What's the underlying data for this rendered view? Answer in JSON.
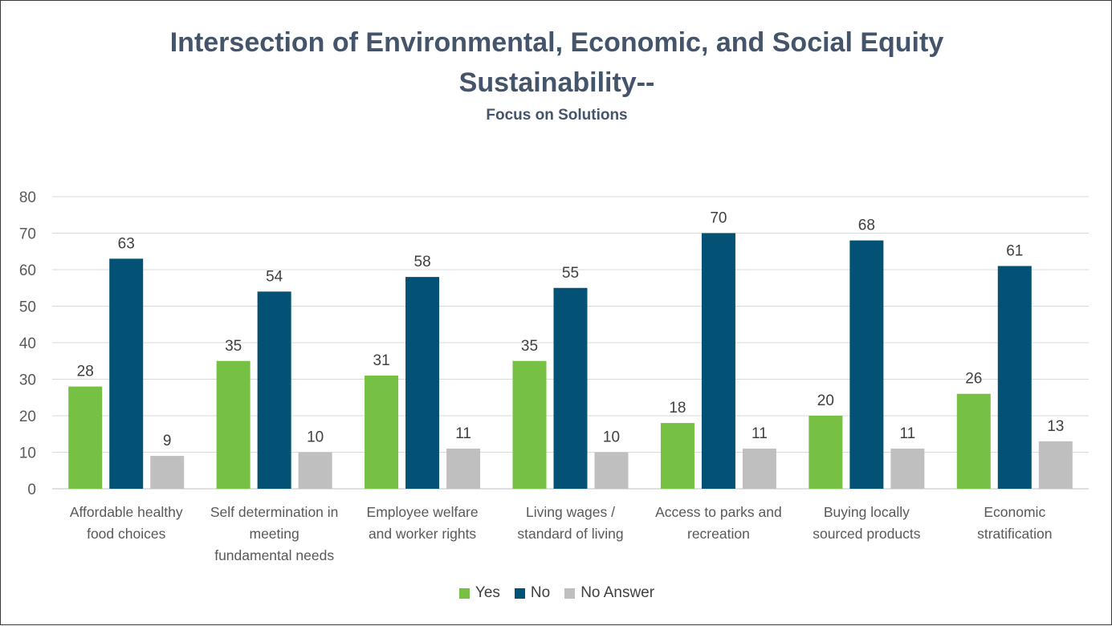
{
  "chart_data": {
    "type": "bar",
    "title_line1": "Intersection of Environmental, Economic, and Social Equity",
    "title_line2": "Sustainability--",
    "subtitle": "Focus on Solutions",
    "categories": [
      [
        "Affordable healthy",
        "food choices"
      ],
      [
        "Self determination in",
        "meeting",
        "fundamental needs"
      ],
      [
        "Employee welfare",
        "and worker rights"
      ],
      [
        "Living wages /",
        "standard of living"
      ],
      [
        "Access to parks and",
        "recreation"
      ],
      [
        "Buying locally",
        "sourced products"
      ],
      [
        "Economic",
        "stratification"
      ]
    ],
    "series": [
      {
        "name": "Yes",
        "color": "#76c043",
        "values": [
          28,
          35,
          31,
          35,
          18,
          20,
          26
        ]
      },
      {
        "name": "No",
        "color": "#035174",
        "values": [
          63,
          54,
          58,
          55,
          70,
          68,
          61
        ]
      },
      {
        "name": "No Answer",
        "color": "#bfbfbf",
        "values": [
          9,
          10,
          11,
          10,
          11,
          11,
          13
        ]
      }
    ],
    "ylim": [
      0,
      80
    ],
    "yticks": [
      0,
      10,
      20,
      30,
      40,
      50,
      60,
      70,
      80
    ],
    "grid": true,
    "legend": "bottom"
  }
}
